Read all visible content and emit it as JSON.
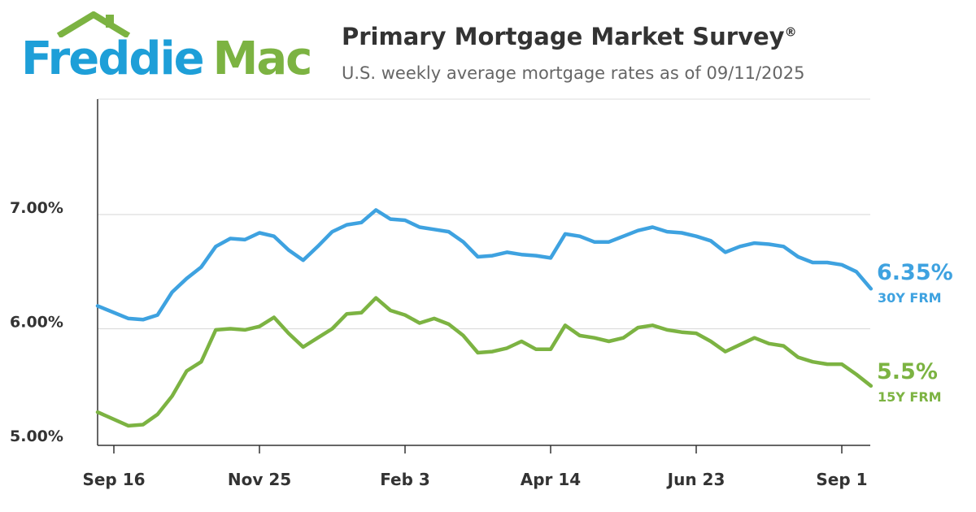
{
  "logo": {
    "word1": "Freddie",
    "word2": "Mac"
  },
  "header": {
    "title": "Primary Mortgage Market Survey",
    "title_mark": "®",
    "subtitle": "U.S. weekly average mortgage rates as of 09/11/2025"
  },
  "colors": {
    "blue": "#3ea2e0",
    "green": "#7cb342",
    "grid": "#dddddd",
    "axis": "#333333"
  },
  "chart_data": {
    "type": "line",
    "title": "Primary Mortgage Market Survey",
    "subtitle": "U.S. weekly average mortgage rates as of 09/11/2025",
    "xlabel": "",
    "ylabel": "",
    "ylim": [
      5.0,
      7.0
    ],
    "grid": true,
    "y_ticks": [
      "5.00%",
      "6.00%",
      "7.00%"
    ],
    "y_tick_values": [
      5.0,
      6.0,
      7.0
    ],
    "x_tick_labels": [
      "Sep 16",
      "Nov 25",
      "Feb 3",
      "Apr 14",
      "Jun 23",
      "Sep 1"
    ],
    "x_tick_weeks": [
      1,
      11,
      21,
      31,
      41,
      51
    ],
    "weeks": 53,
    "series": [
      {
        "name": "30Y FRM",
        "end_label": "6.35%",
        "color": "#3ea2e0",
        "values": [
          6.2,
          6.09,
          6.08,
          6.12,
          6.32,
          6.44,
          6.54,
          6.72,
          6.79,
          6.78,
          6.84,
          6.81,
          6.69,
          6.6,
          6.72,
          6.85,
          6.91,
          6.93,
          7.04,
          6.96,
          6.95,
          6.89,
          6.87,
          6.85,
          6.76,
          6.63,
          6.64,
          6.67,
          6.65,
          6.64,
          6.62,
          6.83,
          6.81,
          6.76,
          6.76,
          6.81,
          6.86,
          6.89,
          6.85,
          6.84,
          6.81,
          6.77,
          6.67,
          6.72,
          6.75,
          6.74,
          6.72,
          6.63,
          6.58,
          6.58,
          6.56,
          6.5,
          6.35
        ]
      },
      {
        "name": "15Y FRM",
        "end_label": "5.5%",
        "color": "#7cb342",
        "values": [
          5.27,
          5.15,
          5.16,
          5.25,
          5.41,
          5.63,
          5.71,
          5.99,
          6.0,
          5.99,
          6.02,
          6.1,
          5.96,
          5.84,
          5.92,
          6.0,
          6.13,
          6.14,
          6.27,
          6.16,
          6.12,
          6.05,
          6.09,
          6.04,
          5.94,
          5.79,
          5.8,
          5.83,
          5.89,
          5.82,
          5.82,
          6.03,
          5.94,
          5.92,
          5.89,
          5.92,
          6.01,
          6.03,
          5.99,
          5.97,
          5.96,
          5.89,
          5.8,
          5.86,
          5.92,
          5.87,
          5.85,
          5.75,
          5.71,
          5.69,
          5.69,
          5.6,
          5.5
        ]
      }
    ]
  }
}
